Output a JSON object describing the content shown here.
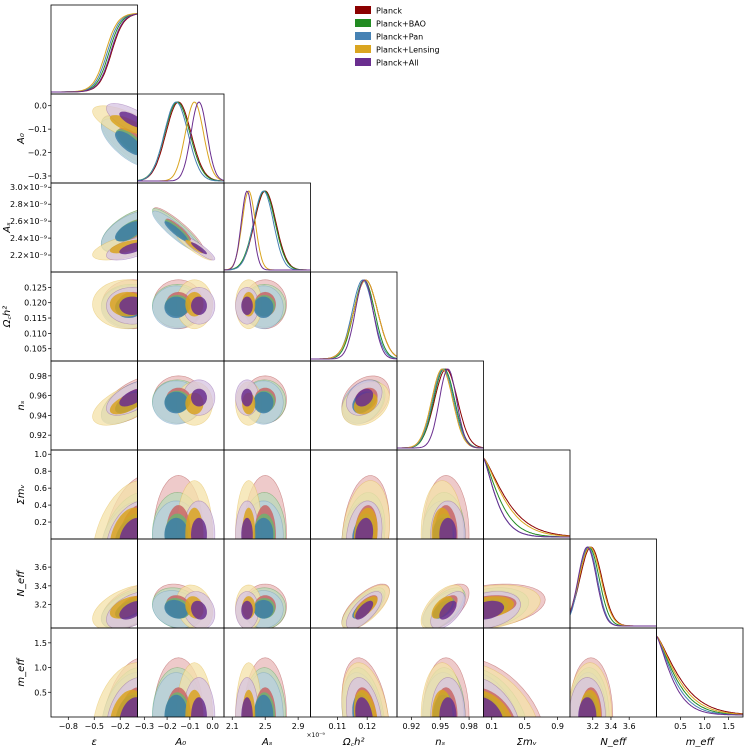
{
  "chart_data": {
    "type": "corner",
    "params": [
      {
        "key": "eps",
        "label": "ε",
        "range": [
          -1.0,
          0.0
        ],
        "ticks": [
          -0.8,
          -0.5,
          -0.2
        ],
        "tick_labels": [
          "−0.8",
          "−0.5",
          "−0.2"
        ]
      },
      {
        "key": "A0",
        "label": "A₀",
        "range": [
          -0.33,
          0.05
        ],
        "ticks": [
          -0.3,
          -0.2,
          -0.1,
          0.0
        ],
        "tick_labels": [
          "−0.3",
          "−0.2",
          "−0.1",
          "0.0"
        ]
      },
      {
        "key": "As",
        "label": "Aₛ",
        "range": [
          2.0,
          3.05
        ],
        "ticks": [
          2.1,
          2.5,
          2.9
        ],
        "tick_labels": [
          "2.1",
          "2.5",
          "2.9"
        ],
        "sci": "×10⁻⁹",
        "y_ticks": [
          2.2,
          2.4,
          2.6,
          2.8,
          3.0
        ],
        "y_tick_labels": [
          "2.2×10⁻⁹",
          "2.4×10⁻⁹",
          "2.6×10⁻⁹",
          "2.8×10⁻⁹",
          "3.0×10⁻⁹"
        ]
      },
      {
        "key": "och2",
        "label": "Ω꜀h²",
        "range": [
          0.101,
          0.13
        ],
        "ticks": [
          0.11,
          0.12
        ],
        "tick_labels": [
          "0.11",
          "0.12"
        ],
        "y_ticks": [
          0.105,
          0.11,
          0.115,
          0.12,
          0.125
        ],
        "y_tick_labels": [
          "0.105",
          "0.110",
          "0.115",
          "0.120",
          "0.125"
        ]
      },
      {
        "key": "ns",
        "label": "nₛ",
        "range": [
          0.905,
          0.995
        ],
        "ticks": [
          0.92,
          0.95,
          0.98
        ],
        "tick_labels": [
          "0.92",
          "0.95",
          "0.98"
        ],
        "y_ticks": [
          0.92,
          0.94,
          0.96,
          0.98
        ],
        "y_tick_labels": [
          "0.92",
          "0.94",
          "0.96",
          "0.98"
        ]
      },
      {
        "key": "mnu",
        "label": "Σmᵥ",
        "range": [
          0.0,
          1.05
        ],
        "ticks": [
          0.1,
          0.5,
          0.9
        ],
        "tick_labels": [
          "0.1",
          "0.5",
          "0.9"
        ],
        "y_ticks": [
          0.2,
          0.4,
          0.6,
          0.8,
          1.0
        ],
        "y_tick_labels": [
          "0.2",
          "0.4",
          "0.6",
          "0.8",
          "1.0"
        ]
      },
      {
        "key": "neff",
        "label": "N_eff",
        "range": [
          2.95,
          3.9
        ],
        "ticks": [
          3.2,
          3.4,
          3.6
        ],
        "tick_labels": [
          "3.2",
          "3.4",
          "3.6"
        ],
        "y_ticks": [
          3.2,
          3.4,
          3.6
        ],
        "y_tick_labels": [
          "3.2",
          "3.4",
          "3.6"
        ]
      },
      {
        "key": "meff",
        "label": "m_eff",
        "range": [
          0.0,
          1.8
        ],
        "ticks": [
          0.5,
          1.0,
          1.5
        ],
        "tick_labels": [
          "0.5",
          "1.0",
          "1.5"
        ],
        "y_ticks": [
          0.5,
          1.0,
          1.5
        ],
        "y_tick_labels": [
          "0.5",
          "1.0",
          "1.5"
        ]
      }
    ],
    "eps_y_ticks": [
      -0.3,
      -0.2,
      -0.1,
      0.0
    ],
    "a0_y_tick_labels": [
      "−0.3",
      "−0.2",
      "−0.1",
      "0.0"
    ],
    "series": [
      {
        "name": "Planck",
        "color": "#8b0000",
        "mean": {
          "eps": -0.05,
          "A0": -0.15,
          "As": 2.5,
          "och2": 0.1195,
          "ns": 0.956,
          "mnu": 0.05,
          "neff": 3.18,
          "meff": 0.0
        },
        "sd": {
          "eps": 0.18,
          "A0": 0.055,
          "As": 0.13,
          "och2": 0.004,
          "ns": 0.012,
          "mnu": 0.35,
          "neff": 0.12,
          "meff": 0.6
        }
      },
      {
        "name": "Planck+BAO",
        "color": "#228b22",
        "mean": {
          "eps": -0.08,
          "A0": -0.155,
          "As": 2.49,
          "och2": 0.119,
          "ns": 0.954,
          "mnu": 0.05,
          "neff": 3.16,
          "meff": 0.0
        },
        "sd": {
          "eps": 0.17,
          "A0": 0.055,
          "As": 0.13,
          "och2": 0.0035,
          "ns": 0.011,
          "mnu": 0.25,
          "neff": 0.11,
          "meff": 0.5
        }
      },
      {
        "name": "Planck+Pan",
        "color": "#4682b4",
        "mean": {
          "eps": -0.1,
          "A0": -0.16,
          "As": 2.48,
          "och2": 0.1185,
          "ns": 0.953,
          "mnu": 0.05,
          "neff": 3.15,
          "meff": 0.0
        },
        "sd": {
          "eps": 0.16,
          "A0": 0.052,
          "As": 0.12,
          "och2": 0.0035,
          "ns": 0.011,
          "mnu": 0.2,
          "neff": 0.1,
          "meff": 0.45
        }
      },
      {
        "name": "Planck+Lensing",
        "color": "#daa520",
        "mean": {
          "eps": -0.12,
          "A0": -0.08,
          "As": 2.3,
          "och2": 0.1195,
          "ns": 0.952,
          "mnu": 0.05,
          "neff": 3.17,
          "meff": 0.0
        },
        "sd": {
          "eps": 0.2,
          "A0": 0.04,
          "As": 0.08,
          "och2": 0.004,
          "ns": 0.011,
          "mnu": 0.32,
          "neff": 0.12,
          "meff": 0.55
        }
      },
      {
        "name": "Planck+All",
        "color": "#6a2e8f",
        "mean": {
          "eps": -0.06,
          "A0": -0.06,
          "As": 2.28,
          "och2": 0.119,
          "ns": 0.958,
          "mnu": 0.05,
          "neff": 3.14,
          "meff": 0.0
        },
        "sd": {
          "eps": 0.15,
          "A0": 0.035,
          "As": 0.07,
          "och2": 0.003,
          "ns": 0.009,
          "mnu": 0.2,
          "neff": 0.1,
          "meff": 0.4
        }
      }
    ],
    "legend_position": "top-center",
    "grid": false
  }
}
